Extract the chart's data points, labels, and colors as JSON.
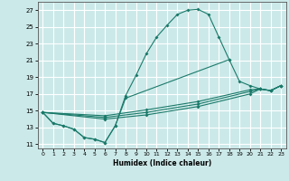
{
  "xlabel": "Humidex (Indice chaleur)",
  "background_color": "#cce9e9",
  "grid_color": "#ffffff",
  "line_color": "#1a7a6a",
  "xlim": [
    -0.5,
    23.5
  ],
  "ylim": [
    10.5,
    28.0
  ],
  "xticks": [
    0,
    1,
    2,
    3,
    4,
    5,
    6,
    7,
    8,
    9,
    10,
    11,
    12,
    13,
    14,
    15,
    16,
    17,
    18,
    19,
    20,
    21,
    22,
    23
  ],
  "yticks": [
    11,
    13,
    15,
    17,
    19,
    21,
    23,
    25,
    27
  ],
  "series1": [
    [
      0,
      14.8
    ],
    [
      1,
      13.5
    ],
    [
      2,
      13.2
    ],
    [
      3,
      12.8
    ],
    [
      4,
      11.8
    ],
    [
      5,
      11.6
    ],
    [
      6,
      11.2
    ],
    [
      7,
      13.2
    ],
    [
      8,
      16.8
    ],
    [
      9,
      19.2
    ],
    [
      10,
      21.8
    ],
    [
      11,
      23.8
    ],
    [
      12,
      25.2
    ],
    [
      13,
      26.5
    ],
    [
      14,
      27.0
    ],
    [
      15,
      27.1
    ],
    [
      16,
      26.5
    ],
    [
      17,
      23.8
    ],
    [
      18,
      21.1
    ]
  ],
  "series2": [
    [
      0,
      14.8
    ],
    [
      1,
      13.5
    ],
    [
      2,
      13.2
    ],
    [
      3,
      12.8
    ],
    [
      4,
      11.8
    ],
    [
      5,
      11.6
    ],
    [
      6,
      11.2
    ],
    [
      7,
      13.2
    ],
    [
      8,
      16.5
    ],
    [
      18,
      21.1
    ],
    [
      19,
      18.5
    ],
    [
      20,
      18.0
    ],
    [
      21,
      17.6
    ],
    [
      22,
      17.4
    ],
    [
      23,
      18.0
    ]
  ],
  "line2": [
    [
      0,
      14.8
    ],
    [
      6,
      14.0
    ],
    [
      10,
      14.5
    ],
    [
      15,
      15.5
    ],
    [
      20,
      17.0
    ],
    [
      21,
      17.6
    ],
    [
      22,
      17.4
    ],
    [
      23,
      18.0
    ]
  ],
  "line3": [
    [
      0,
      14.8
    ],
    [
      6,
      14.2
    ],
    [
      10,
      14.8
    ],
    [
      15,
      15.8
    ],
    [
      20,
      17.3
    ],
    [
      21,
      17.6
    ],
    [
      22,
      17.4
    ],
    [
      23,
      18.0
    ]
  ],
  "line4": [
    [
      0,
      14.8
    ],
    [
      6,
      14.4
    ],
    [
      10,
      15.1
    ],
    [
      15,
      16.1
    ],
    [
      20,
      17.5
    ],
    [
      21,
      17.6
    ],
    [
      22,
      17.4
    ],
    [
      23,
      18.0
    ]
  ]
}
